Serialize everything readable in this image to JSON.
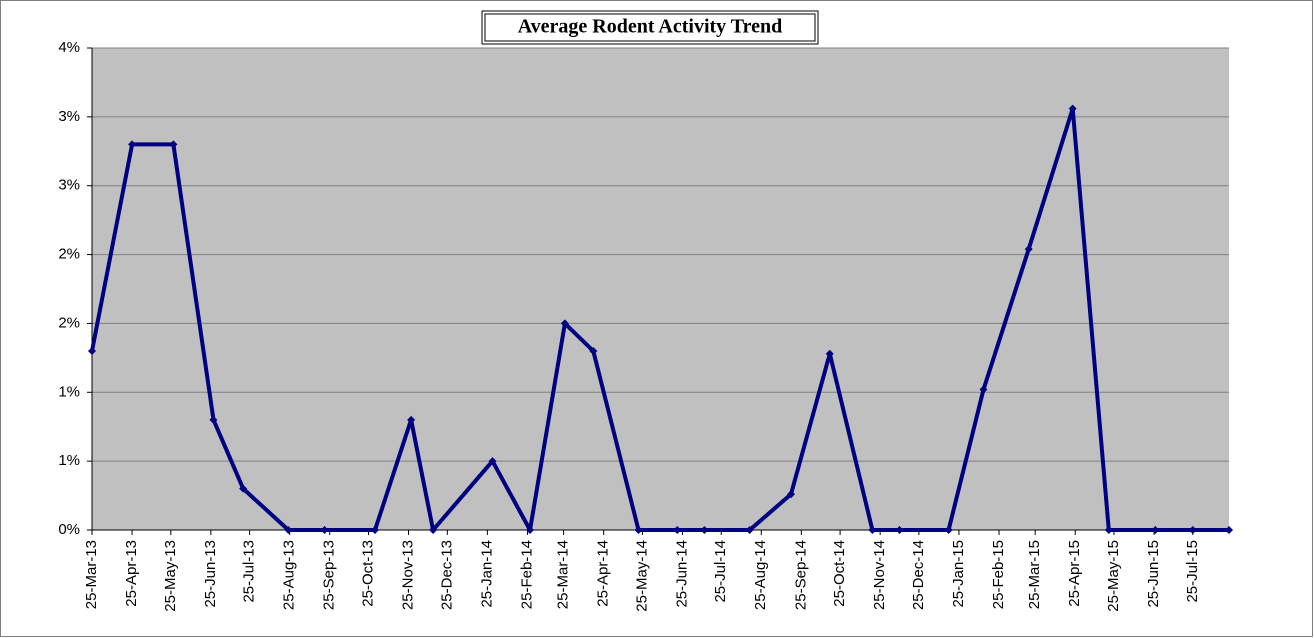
{
  "chart_data": {
    "type": "line",
    "title": "Average Rodent Activity Trend",
    "x": [
      "2013-03-25",
      "2013-04-25",
      "2013-05-27",
      "2013-06-27",
      "2013-07-20",
      "2013-08-24",
      "2013-09-21",
      "2013-10-30",
      "2013-11-27",
      "2013-12-14",
      "2014-01-29",
      "2014-02-27",
      "2014-03-26",
      "2014-04-17",
      "2014-05-22",
      "2014-06-21",
      "2014-07-12",
      "2014-08-16",
      "2014-09-17",
      "2014-10-17",
      "2014-11-19",
      "2014-12-10",
      "2015-01-17",
      "2015-02-13",
      "2015-03-20",
      "2015-04-23",
      "2015-05-21",
      "2015-06-26",
      "2015-07-25",
      "2015-08-22"
    ],
    "series": [
      {
        "color": "#000080",
        "values": [
          1.3,
          2.8,
          2.8,
          0.8,
          0.3,
          0,
          0,
          0,
          0.8,
          0,
          0.5,
          0,
          1.5,
          1.3,
          0,
          0,
          0,
          0,
          0.26,
          1.28,
          0,
          0,
          0,
          1.02,
          2.04,
          3.06,
          0,
          0,
          0,
          0
        ]
      }
    ],
    "xlim": [
      "2013-03-25",
      "2015-08-22"
    ],
    "xticks": [
      {
        "value": "2013-03-25",
        "label": "25-Mar-13"
      },
      {
        "value": "2013-04-25",
        "label": "25-Apr-13"
      },
      {
        "value": "2013-05-25",
        "label": "25-May-13"
      },
      {
        "value": "2013-06-25",
        "label": "25-Jun-13"
      },
      {
        "value": "2013-07-25",
        "label": "25-Jul-13"
      },
      {
        "value": "2013-08-25",
        "label": "25-Aug-13"
      },
      {
        "value": "2013-09-25",
        "label": "25-Sep-13"
      },
      {
        "value": "2013-10-25",
        "label": "25-Oct-13"
      },
      {
        "value": "2013-11-25",
        "label": "25-Nov-13"
      },
      {
        "value": "2013-12-25",
        "label": "25-Dec-13"
      },
      {
        "value": "2014-01-25",
        "label": "25-Jan-14"
      },
      {
        "value": "2014-02-25",
        "label": "25-Feb-14"
      },
      {
        "value": "2014-03-25",
        "label": "25-Mar-14"
      },
      {
        "value": "2014-04-25",
        "label": "25-Apr-14"
      },
      {
        "value": "2014-05-25",
        "label": "25-May-14"
      },
      {
        "value": "2014-06-25",
        "label": "25-Jun-14"
      },
      {
        "value": "2014-07-25",
        "label": "25-Jul-14"
      },
      {
        "value": "2014-08-25",
        "label": "25-Aug-14"
      },
      {
        "value": "2014-09-25",
        "label": "25-Sep-14"
      },
      {
        "value": "2014-10-25",
        "label": "25-Oct-14"
      },
      {
        "value": "2014-11-25",
        "label": "25-Nov-14"
      },
      {
        "value": "2014-12-25",
        "label": "25-Dec-14"
      },
      {
        "value": "2015-01-25",
        "label": "25-Jan-15"
      },
      {
        "value": "2015-02-25",
        "label": "25-Feb-15"
      },
      {
        "value": "2015-03-25",
        "label": "25-Mar-15"
      },
      {
        "value": "2015-04-25",
        "label": "25-Apr-15"
      },
      {
        "value": "2015-05-25",
        "label": "25-May-15"
      },
      {
        "value": "2015-06-25",
        "label": "25-Jun-15"
      },
      {
        "value": "2015-07-25",
        "label": "25-Jul-15"
      }
    ],
    "ylim": [
      0,
      3.5
    ],
    "yticks": [
      {
        "value": 0,
        "label": "0%"
      },
      {
        "value": 0.5,
        "label": "1%"
      },
      {
        "value": 1,
        "label": "1%"
      },
      {
        "value": 1.5,
        "label": "2%"
      },
      {
        "value": 2,
        "label": "2%"
      },
      {
        "value": 2.5,
        "label": "3%"
      },
      {
        "value": 3,
        "label": "3%"
      },
      {
        "value": 3.5,
        "label": "4%"
      }
    ],
    "grid": true,
    "plot_background": "#c0c0c0"
  }
}
